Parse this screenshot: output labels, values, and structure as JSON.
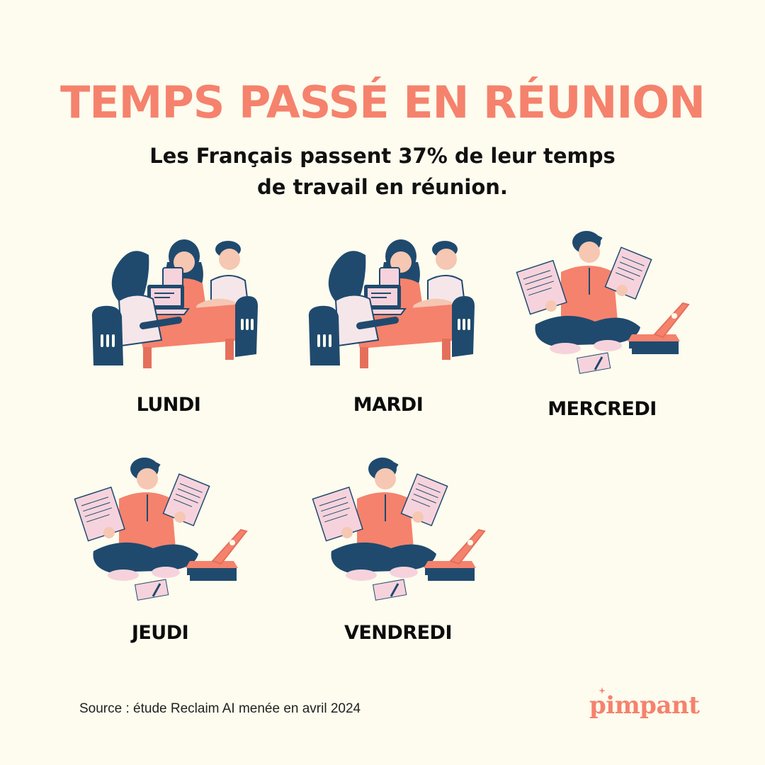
{
  "title": "TEMPS PASSÉ EN RÉUNION",
  "subtitle": "Les Français passent 37% de leur temps de travail en réunion.",
  "days": [
    {
      "label": "LUNDI",
      "illustration": "meeting-illustration"
    },
    {
      "label": "MARDI",
      "illustration": "meeting-illustration"
    },
    {
      "label": "MERCREDI",
      "illustration": "solo-work-illustration"
    },
    {
      "label": "JEUDI",
      "illustration": "solo-work-illustration"
    },
    {
      "label": "VENDREDI",
      "illustration": "solo-work-illustration"
    }
  ],
  "source": "Source : étude Reclaim AI menée en avril 2024",
  "brand": "pimpant",
  "colors": {
    "background": "#fdfcee",
    "accent": "#f5826d",
    "navy": "#1f4a6e",
    "pink": "#f6d3dc",
    "text": "#111111"
  }
}
